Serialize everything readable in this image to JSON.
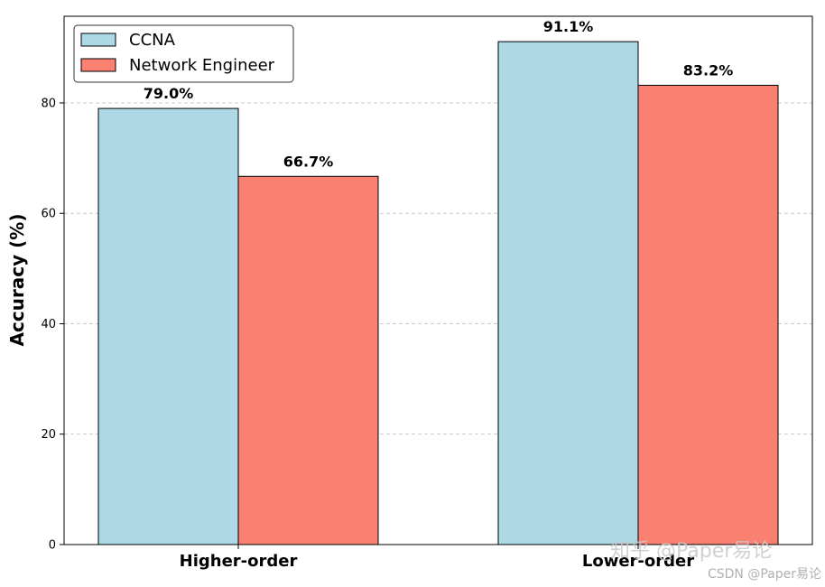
{
  "chart_data": {
    "type": "bar",
    "title": "",
    "xlabel": "",
    "ylabel": "Accuracy (%)",
    "categories": [
      "Higher-order",
      "Lower-order"
    ],
    "series": [
      {
        "name": "CCNA",
        "values": [
          79.0,
          91.1
        ],
        "labels": [
          "79.0%",
          "91.1%"
        ],
        "color": "#add8e6"
      },
      {
        "name": "Network Engineer",
        "values": [
          66.7,
          83.2
        ],
        "labels": [
          "66.7%",
          "83.2%"
        ],
        "color": "#fa8072"
      }
    ],
    "ylim": [
      0,
      95.7
    ],
    "yticks": [
      0,
      20,
      40,
      60,
      80
    ],
    "grid": "y-dashed",
    "legend": "top-left"
  },
  "watermark": {
    "main": "知乎 @Paper易论",
    "sub": "CSDN @Paper易论"
  }
}
